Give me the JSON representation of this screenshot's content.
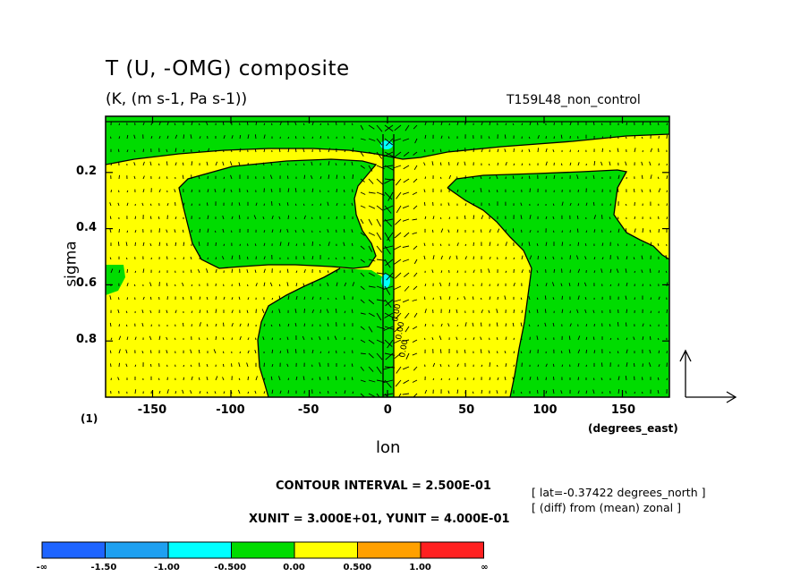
{
  "chart_data": {
    "type": "heatmap",
    "title": "T (U, -OMG) composite",
    "subtitle": "(K, (m s-1, Pa s-1))",
    "run_name": "T159L48_non_control",
    "xlabel": "lon",
    "x_units": "(degrees_east)",
    "ylabel": "sigma",
    "xlim": [
      -180,
      180
    ],
    "ylim": [
      1.0,
      0.0
    ],
    "x_ticks": [
      "-150",
      "-100",
      "-50",
      "0",
      "50",
      "100",
      "150"
    ],
    "x_tick_values": [
      -150,
      -100,
      -50,
      0,
      50,
      100,
      150
    ],
    "y_ticks": [
      "0.2",
      "0.4",
      "0.6",
      "0.8"
    ],
    "y_tick_values": [
      0.2,
      0.4,
      0.6,
      0.8
    ],
    "panel_index": "(1)",
    "contour_interval": "CONTOUR INTERVAL = 2.500E-01",
    "vector_units": "XUNIT = 3.000E+01, YUNIT = 4.000E-01",
    "annotations": [
      "[ lat=-0.37422 degrees_north ]",
      "[ (diff) from (mean) zonal ]"
    ],
    "contour_labels": [
      "0.00",
      "0.00",
      "0.00"
    ],
    "colorbar": {
      "labels": [
        "-∞",
        "-1.50",
        "-1.00",
        "-0.500",
        "0.00",
        "0.500",
        "1.00",
        "∞"
      ],
      "colors": [
        "#1e64ff",
        "#1ea0f0",
        "#00ffff",
        "#00dc00",
        "#ffff00",
        "#ffa000",
        "#ff2020"
      ]
    },
    "fill_colors": {
      "positive": "#ffff00",
      "negative": "#00dc00",
      "weak_negative": "#00ffff"
    }
  }
}
